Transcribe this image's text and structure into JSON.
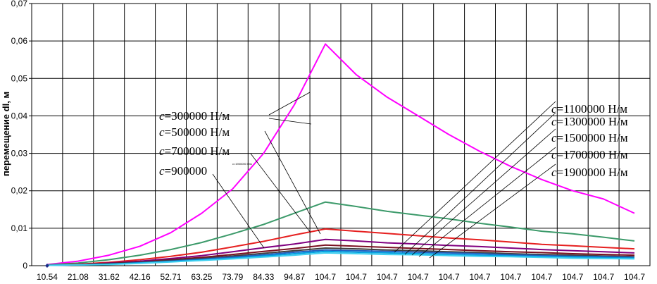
{
  "chart_data": {
    "type": "line",
    "ylabel": "перемещение dl, м",
    "xlabel": "",
    "ylim": [
      0,
      0.07
    ],
    "yticks": [
      "0",
      "0,01",
      "0,02",
      "0,03",
      "0,04",
      "0,05",
      "0,06",
      "0,07"
    ],
    "categories": [
      "10.54",
      "21.08",
      "31.62",
      "42.16",
      "52.71",
      "63.25",
      "73.79",
      "84.33",
      "94.87",
      "104.7",
      "104.7",
      "104.7",
      "104.7",
      "104.7",
      "104.7",
      "104.7",
      "104.7",
      "104.7",
      "104.7",
      "104.7"
    ],
    "grid": true,
    "series": [
      {
        "name": "c=300000 Н/м",
        "color": "#ff00ff",
        "values": [
          0.0003,
          0.0012,
          0.0028,
          0.0052,
          0.0088,
          0.014,
          0.0205,
          0.03,
          0.043,
          0.0592,
          0.051,
          0.045,
          0.04,
          0.035,
          0.0305,
          0.0265,
          0.023,
          0.02,
          0.0178,
          0.014
        ]
      },
      {
        "name": "c=500000 Н/м",
        "color": "#3c9a6a",
        "values": [
          0.0002,
          0.0007,
          0.0016,
          0.0028,
          0.0043,
          0.0062,
          0.0085,
          0.011,
          0.014,
          0.017,
          0.0158,
          0.0145,
          0.0135,
          0.0125,
          0.0113,
          0.0103,
          0.0092,
          0.0085,
          0.0076,
          0.0066
        ]
      },
      {
        "name": "c=700000 Н/м",
        "color": "#e62020",
        "values": [
          0.0001,
          0.0004,
          0.0009,
          0.0016,
          0.0025,
          0.0036,
          0.005,
          0.0065,
          0.0082,
          0.0098,
          0.0092,
          0.0086,
          0.008,
          0.0074,
          0.0069,
          0.0063,
          0.0057,
          0.0053,
          0.0049,
          0.0045
        ]
      },
      {
        "name": "c=900000",
        "color": "#800080",
        "values": [
          0.0001,
          0.0003,
          0.0007,
          0.0012,
          0.0019,
          0.0027,
          0.0037,
          0.0048,
          0.0058,
          0.007,
          0.0066,
          0.0061,
          0.0058,
          0.0054,
          0.0051,
          0.0047,
          0.0043,
          0.004,
          0.0037,
          0.0034
        ]
      },
      {
        "name": "c=1100000 Н/м",
        "color": "#7a1020",
        "values": [
          0.0001,
          0.0003,
          0.0006,
          0.001,
          0.0016,
          0.0022,
          0.003,
          0.0038,
          0.0046,
          0.0055,
          0.0052,
          0.0049,
          0.0046,
          0.0043,
          0.004,
          0.0037,
          0.0035,
          0.0032,
          0.003,
          0.0028
        ]
      },
      {
        "name": "c=1300000 Н/м",
        "color": "#404040",
        "values": [
          0.0001,
          0.0002,
          0.0005,
          0.0009,
          0.0014,
          0.0019,
          0.0026,
          0.0033,
          0.004,
          0.0047,
          0.0045,
          0.0042,
          0.004,
          0.0037,
          0.0035,
          0.0032,
          0.003,
          0.0028,
          0.0026,
          0.0024
        ]
      },
      {
        "name": "c=1500000 Н/м",
        "color": "#2060c0",
        "values": [
          0.0001,
          0.0002,
          0.0004,
          0.0008,
          0.0012,
          0.0017,
          0.0023,
          0.0029,
          0.0036,
          0.0042,
          0.004,
          0.0038,
          0.0036,
          0.0034,
          0.0032,
          0.0029,
          0.0027,
          0.0025,
          0.0024,
          0.0022
        ]
      },
      {
        "name": "c=1700000 Н/м",
        "color": "#00a0e0",
        "values": [
          0.0001,
          0.0002,
          0.0004,
          0.0007,
          0.0011,
          0.0015,
          0.002,
          0.0026,
          0.0032,
          0.0038,
          0.0036,
          0.0034,
          0.0032,
          0.003,
          0.0028,
          0.0026,
          0.0024,
          0.0023,
          0.0021,
          0.002
        ]
      },
      {
        "name": "c=1900000 Н/м",
        "color": "#40d0f0",
        "values": [
          0.0001,
          0.0002,
          0.0003,
          0.0006,
          0.001,
          0.0014,
          0.0018,
          0.0023,
          0.0028,
          0.0034,
          0.0032,
          0.003,
          0.0029,
          0.0027,
          0.0025,
          0.0024,
          0.0022,
          0.002,
          0.0019,
          0.0018
        ]
      }
    ],
    "annotations": {
      "left": [
        "c=300000 Н/м",
        "c=500000 Н/м",
        "c=700000 Н/м",
        "c=900000"
      ],
      "right": [
        "c=1100000 Н/м",
        "c=1300000 Н/м",
        "c=1500000 Н/м",
        "c=1700000 Н/м",
        "c=1900000 Н/м"
      ],
      "tiny": "c=1900000 Н/м"
    },
    "marker": {
      "category": "10.54",
      "value": 0,
      "color": "#1a2a8a"
    }
  }
}
